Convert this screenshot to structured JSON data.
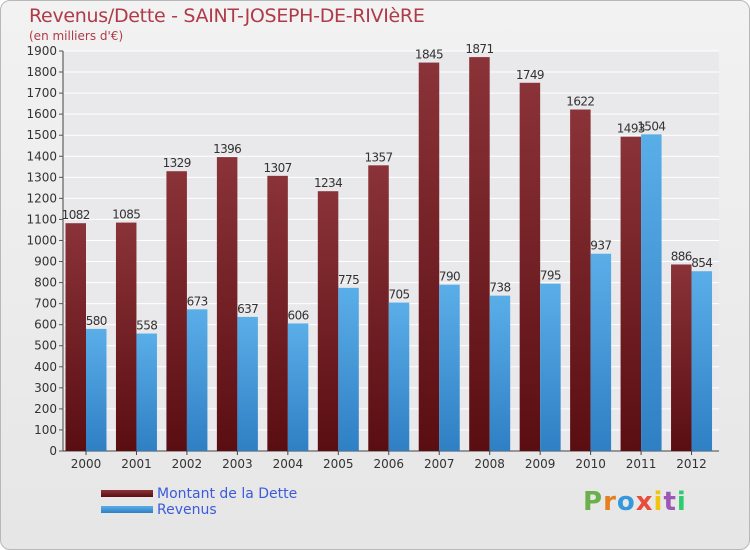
{
  "title": "Revenus/Dette - SAINT-JOSEPH-DE-RIVIèRE",
  "subtitle": "(en milliers d'€)",
  "colors": {
    "dette": "#7a2a2e",
    "revenus": "#4fa3e0",
    "title": "#b03a48",
    "legend_text": "#3b5bdb"
  },
  "chart_data": {
    "type": "bar",
    "categories": [
      "2000",
      "2001",
      "2002",
      "2003",
      "2004",
      "2005",
      "2006",
      "2007",
      "2008",
      "2009",
      "2010",
      "2011",
      "2012"
    ],
    "series": [
      {
        "name": "Montant de la Dette",
        "values": [
          1082,
          1085,
          1329,
          1396,
          1307,
          1234,
          1357,
          1845,
          1871,
          1749,
          1622,
          1493,
          886
        ]
      },
      {
        "name": "Revenus",
        "values": [
          580,
          558,
          673,
          637,
          606,
          775,
          705,
          790,
          738,
          795,
          937,
          1504,
          854
        ]
      }
    ],
    "ylim": [
      0,
      1900
    ],
    "yticks": [
      0,
      100,
      200,
      300,
      400,
      500,
      600,
      700,
      800,
      900,
      1000,
      1100,
      1200,
      1300,
      1400,
      1500,
      1600,
      1700,
      1800,
      1900
    ],
    "grid": true,
    "legend": "bottom-left"
  },
  "legend": {
    "items": [
      {
        "label": "Montant de la Dette"
      },
      {
        "label": "Revenus"
      }
    ]
  },
  "logo": {
    "letters": [
      "P",
      "r",
      "o",
      "x",
      "i",
      "t",
      "i"
    ],
    "colors": [
      "#6ab04c",
      "#e67e22",
      "#3498db",
      "#e74c3c",
      "#f1c40f",
      "#9b59b6",
      "#2ecc71"
    ]
  }
}
